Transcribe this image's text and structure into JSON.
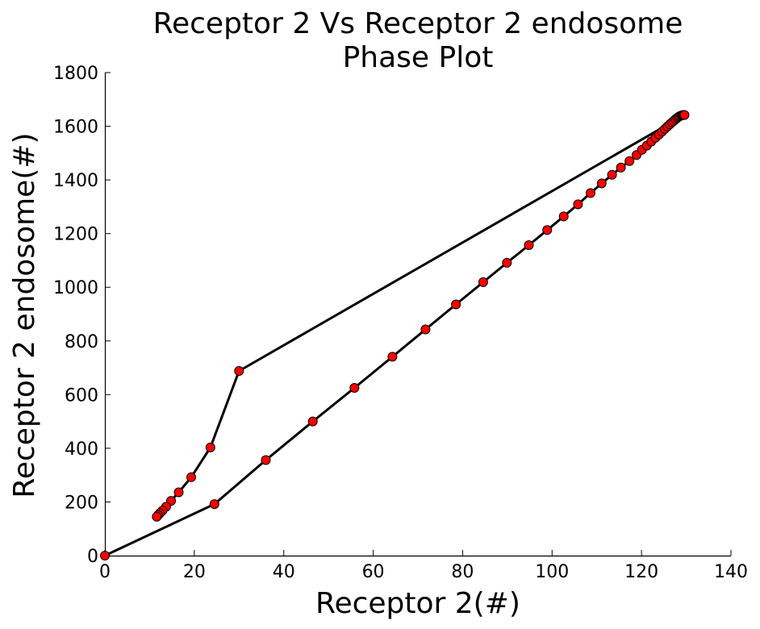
{
  "chart_data": {
    "type": "line",
    "title_lines": [
      "Receptor 2 Vs Receptor 2 endosome",
      "Phase Plot"
    ],
    "xlabel": "Receptor 2(#)",
    "ylabel": "Receptor 2 endosome(#)",
    "xlim": [
      0,
      140
    ],
    "ylim": [
      0,
      1800
    ],
    "xticks": [
      0,
      20,
      40,
      60,
      80,
      100,
      120,
      140
    ],
    "yticks": [
      0,
      200,
      400,
      600,
      800,
      1000,
      1200,
      1400,
      1600,
      1800
    ],
    "grid": false,
    "line_color": "#000000",
    "marker_color": "#ff0000",
    "marker_edge_color": "#000000",
    "series": [
      {
        "x": [
          0,
          24.5,
          36,
          46.5,
          55.8,
          64.3,
          71.7,
          78.5,
          84.6,
          89.9,
          94.8,
          98.9,
          102.6,
          105.8,
          108.6,
          111.1,
          113.4,
          115.4,
          117.3,
          118.9,
          120.1,
          121.2,
          122.2,
          123.1,
          123.9,
          124.6,
          125.2,
          125.8,
          126.3,
          126.8,
          127.2,
          127.6,
          128.0,
          128.3,
          128.6,
          128.9,
          129.1,
          129.3,
          129.5,
          129.6,
          30.0,
          23.6,
          19.3,
          16.5,
          14.8,
          13.7,
          12.9,
          12.3,
          11.9,
          11.6
        ],
        "y": [
          0,
          192,
          356,
          500,
          625,
          741,
          843,
          936,
          1019,
          1091,
          1157,
          1213,
          1264,
          1309,
          1351,
          1387,
          1419,
          1446,
          1470,
          1493,
          1512,
          1528,
          1543,
          1557,
          1569,
          1580,
          1590,
          1599,
          1607,
          1614,
          1620,
          1626,
          1631,
          1635,
          1638,
          1640,
          1641,
          1642,
          1642,
          1642,
          688,
          403,
          292,
          236,
          204,
          182,
          168,
          158,
          151,
          145
        ]
      }
    ]
  }
}
